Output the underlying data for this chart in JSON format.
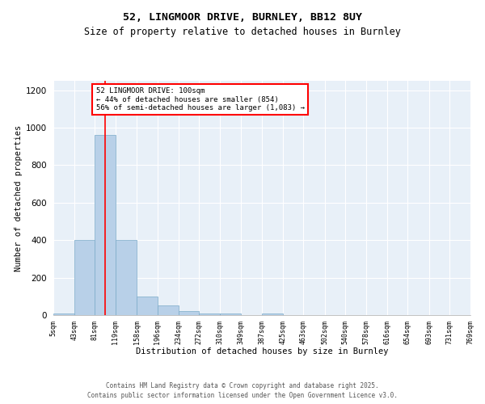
{
  "title1": "52, LINGMOOR DRIVE, BURNLEY, BB12 8UY",
  "title2": "Size of property relative to detached houses in Burnley",
  "xlabel": "Distribution of detached houses by size in Burnley",
  "ylabel": "Number of detached properties",
  "bar_color": "#b8d0e8",
  "bar_edge_color": "#7aaac8",
  "bin_edges": [
    5,
    43,
    81,
    119,
    158,
    196,
    234,
    272,
    310,
    349,
    387,
    425,
    463,
    502,
    540,
    578,
    616,
    654,
    693,
    731,
    769
  ],
  "bar_heights": [
    10,
    400,
    960,
    400,
    100,
    50,
    20,
    10,
    10,
    0,
    10,
    0,
    0,
    0,
    0,
    0,
    0,
    0,
    0,
    0
  ],
  "bin_labels": [
    "5sqm",
    "43sqm",
    "81sqm",
    "119sqm",
    "158sqm",
    "196sqm",
    "234sqm",
    "272sqm",
    "310sqm",
    "349sqm",
    "387sqm",
    "425sqm",
    "463sqm",
    "502sqm",
    "540sqm",
    "578sqm",
    "616sqm",
    "654sqm",
    "693sqm",
    "731sqm",
    "769sqm"
  ],
  "red_line_x": 100,
  "annotation_text": "52 LINGMOOR DRIVE: 100sqm\n← 44% of detached houses are smaller (854)\n56% of semi-detached houses are larger (1,083) →",
  "ylim": [
    0,
    1250
  ],
  "yticks": [
    0,
    200,
    400,
    600,
    800,
    1000,
    1200
  ],
  "bg_color": "#e8f0f8",
  "footer1": "Contains HM Land Registry data © Crown copyright and database right 2025.",
  "footer2": "Contains public sector information licensed under the Open Government Licence v3.0."
}
